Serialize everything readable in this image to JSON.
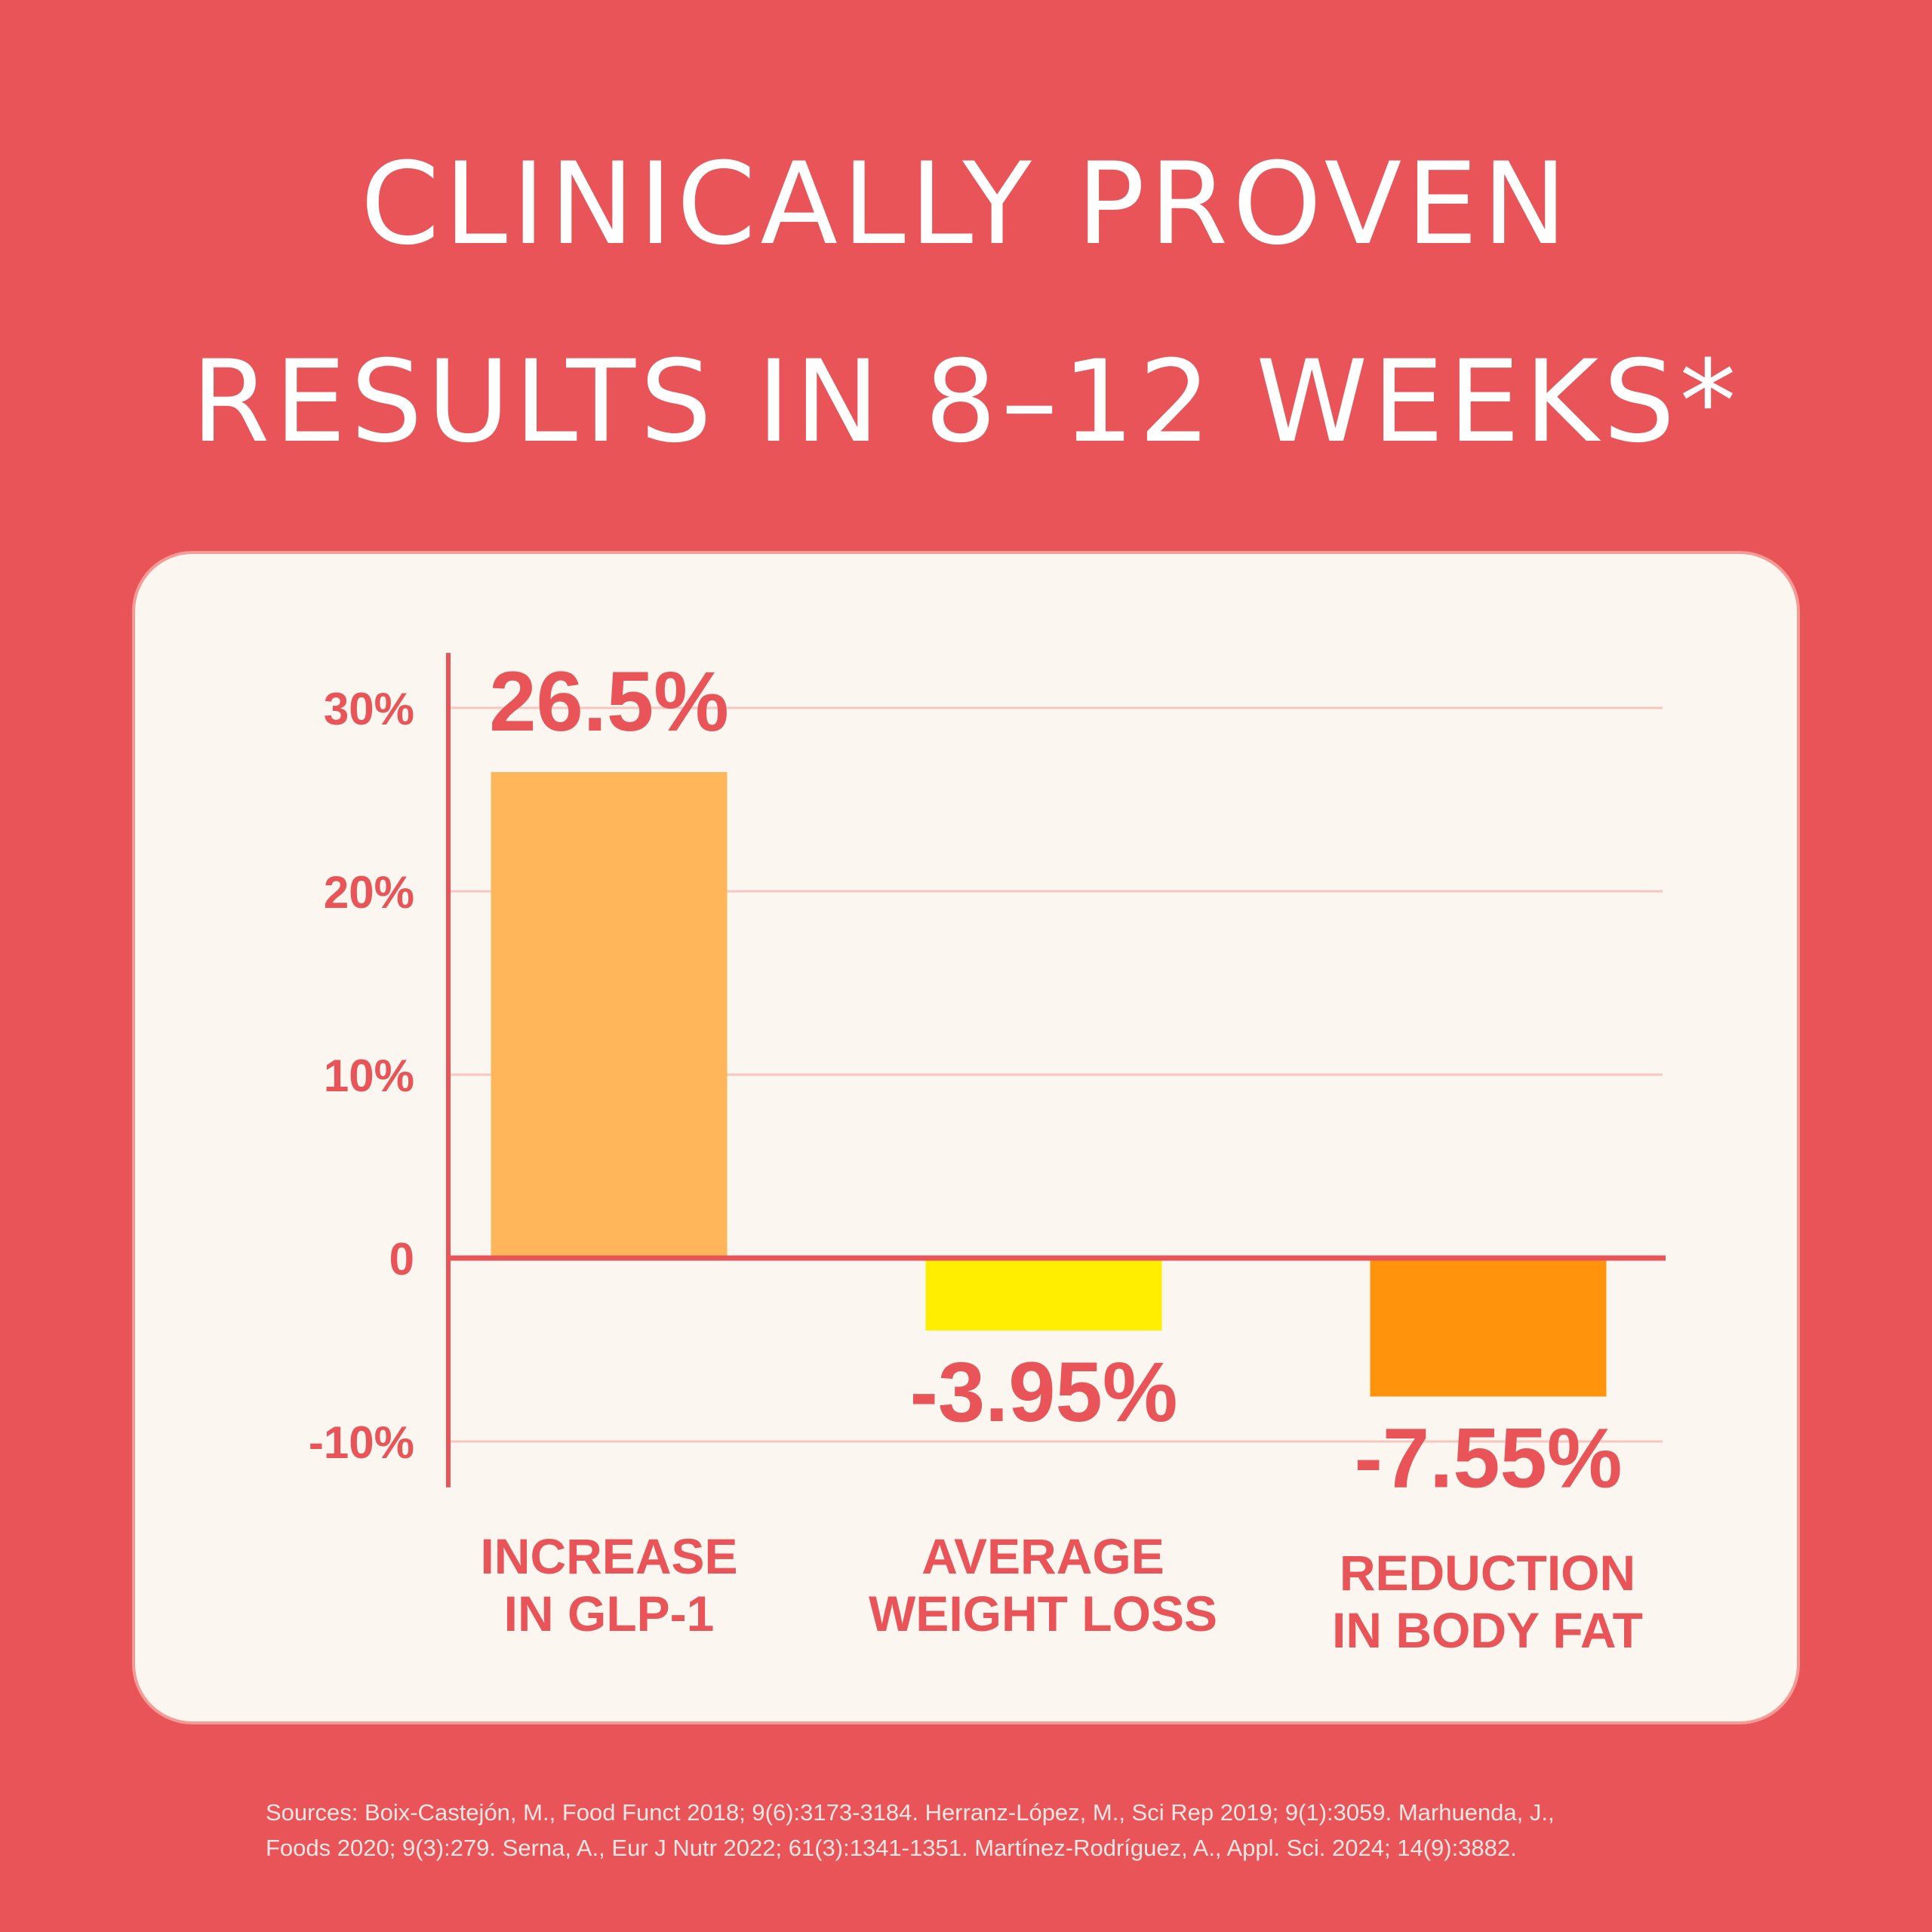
{
  "headline": {
    "line1": "Clinically proven",
    "line2": "results in 8–12 weeks*"
  },
  "colors": {
    "background": "#e85457",
    "card": "#fbf6ef",
    "accent": "#e85457",
    "grid": "#f7c6c2"
  },
  "chart_data": {
    "type": "bar",
    "categories": [
      [
        "INCREASE",
        "IN GLP-1"
      ],
      [
        "AVERAGE",
        "WEIGHT LOSS"
      ],
      [
        "REDUCTION",
        "IN BODY FAT"
      ]
    ],
    "values": [
      26.5,
      -3.95,
      -7.55
    ],
    "value_labels": [
      "26.5%",
      "-3.95%",
      "-7.55%"
    ],
    "bar_colors": [
      "#ffb65a",
      "#ffee00",
      "#ff930b"
    ],
    "yticks": [
      30,
      20,
      10,
      0,
      -10
    ],
    "ytick_labels": [
      "30%",
      "20%",
      "10%",
      "0",
      "-10%"
    ],
    "ylim": [
      -12.5,
      33
    ],
    "title": "",
    "xlabel": "",
    "ylabel": "",
    "grid": true
  },
  "sources": {
    "line1": "Sources:  Boix-Castejón, M., Food Funct 2018; 9(6):3173-3184. Herranz-López, M., Sci Rep 2019; 9(1):3059. Marhuenda, J.,",
    "line2": "Foods 2020; 9(3):279. Serna, A., Eur J Nutr 2022; 61(3):1341-1351. Martínez-Rodríguez, A., Appl. Sci. 2024; 14(9):3882."
  }
}
